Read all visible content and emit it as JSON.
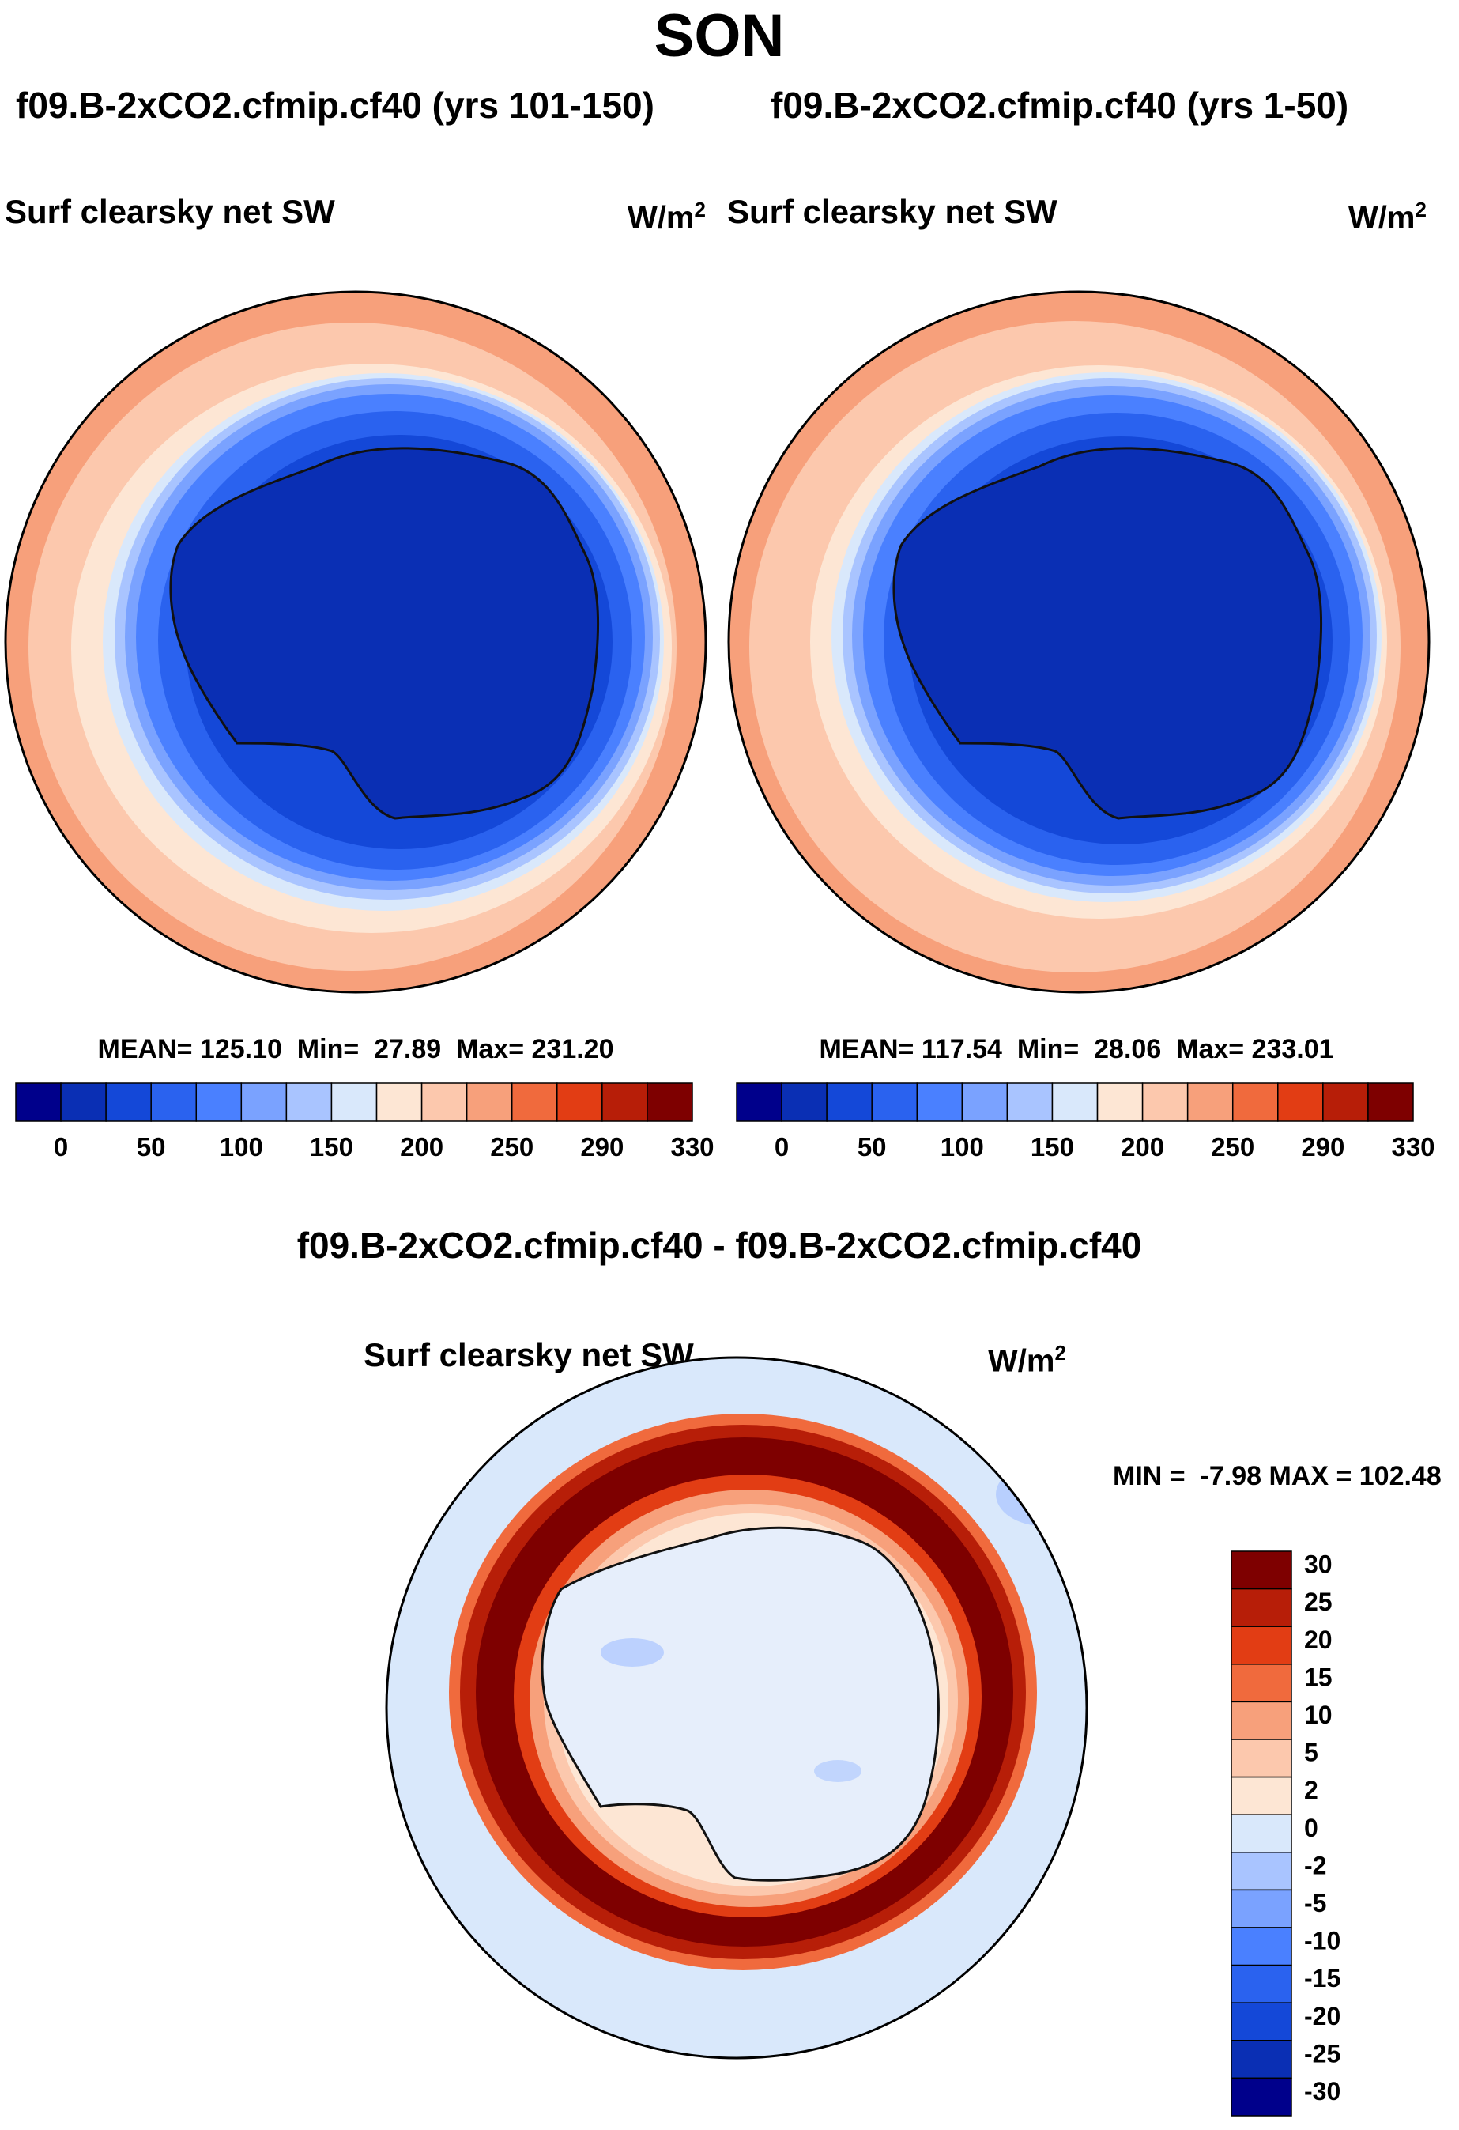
{
  "figure": {
    "season": "SON",
    "diff_title": "f09.B-2xCO2.cfmip.cf40 - f09.B-2xCO2.cfmip.cf40"
  },
  "panels": [
    {
      "case_title": "f09.B-2xCO2.cfmip.cf40 (yrs 101-150)",
      "variable": "Surf clearsky net SW",
      "units_base": "W/m",
      "units_exp": "2",
      "stats": "MEAN= 125.10  Min=  27.89  Max= 231.20",
      "mean": 125.1,
      "min": 27.89,
      "max": 231.2
    },
    {
      "case_title": "f09.B-2xCO2.cfmip.cf40 (yrs 1-50)",
      "variable": "Surf clearsky net SW",
      "units_base": "W/m",
      "units_exp": "2",
      "stats": "MEAN= 117.54  Min=  28.06  Max= 233.01",
      "mean": 117.54,
      "min": 28.06,
      "max": 233.01
    }
  ],
  "diff_panel": {
    "variable": "Surf clearsky net SW",
    "units_base": "W/m",
    "units_exp": "2",
    "minmax": "MIN =  -7.98 MAX = 102.48",
    "min": -7.98,
    "max": 102.48
  },
  "abs_colorbar": {
    "colors": [
      "#00008b",
      "#0a2fb4",
      "#1448d8",
      "#2a62ef",
      "#4a80ff",
      "#7aa2ff",
      "#a9c4ff",
      "#d9e8fb",
      "#fde6d4",
      "#fcc8ad",
      "#f7a07b",
      "#f06a3d",
      "#e23d14",
      "#b71e08",
      "#7e0000"
    ],
    "tick_labels": [
      "0",
      "50",
      "100",
      "150",
      "200",
      "250",
      "290",
      "330"
    ]
  },
  "diff_colorbar": {
    "colors": [
      "#7e0000",
      "#b71e08",
      "#e23d14",
      "#f06a3d",
      "#f7a07b",
      "#fcc8ad",
      "#fde6d4",
      "#d9e8fb",
      "#a9c4ff",
      "#7aa2ff",
      "#4a80ff",
      "#2a62ef",
      "#1448d8",
      "#0a2fb4",
      "#00008b"
    ],
    "tick_labels": [
      "30",
      "25",
      "20",
      "15",
      "10",
      "5",
      "2",
      "0",
      "-2",
      "-5",
      "-10",
      "-15",
      "-20",
      "-25",
      "-30"
    ]
  }
}
